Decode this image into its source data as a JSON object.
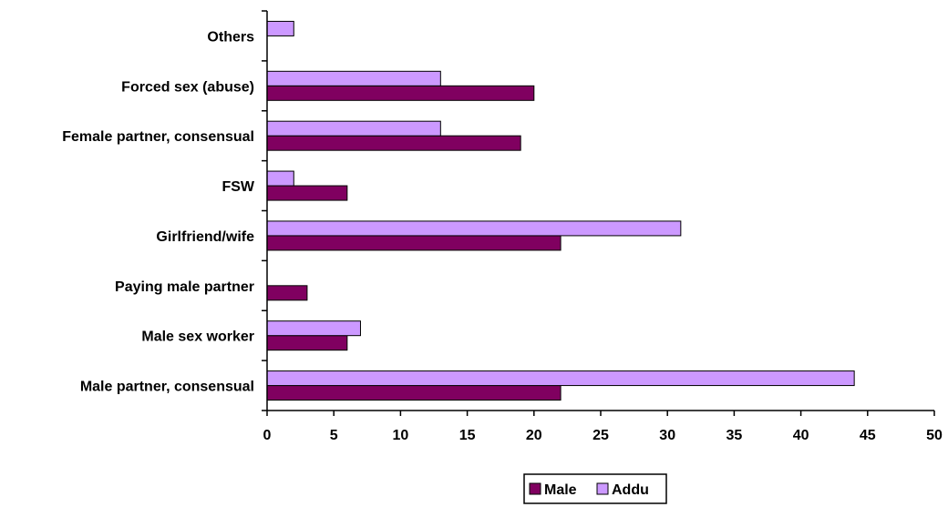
{
  "chart_data": {
    "type": "bar",
    "orientation": "horizontal",
    "categories": [
      "Others",
      "Forced sex (abuse)",
      "Female partner, consensual",
      "FSW",
      "Girlfriend/wife",
      "Paying male partner",
      "Male sex worker",
      "Male partner, consensual"
    ],
    "series": [
      {
        "name": "Male",
        "color": "#800060",
        "values": [
          0,
          20,
          19,
          6,
          22,
          3,
          6,
          22
        ]
      },
      {
        "name": "Addu",
        "color": "#CC99FF",
        "values": [
          2,
          13,
          13,
          2,
          31,
          0,
          7,
          44
        ]
      }
    ],
    "xlim": [
      0,
      50
    ],
    "xticks": [
      0,
      5,
      10,
      15,
      20,
      25,
      30,
      35,
      40,
      45,
      50
    ],
    "grid": false,
    "legend_position": "bottom-center",
    "title": "",
    "xlabel": "",
    "ylabel": ""
  }
}
